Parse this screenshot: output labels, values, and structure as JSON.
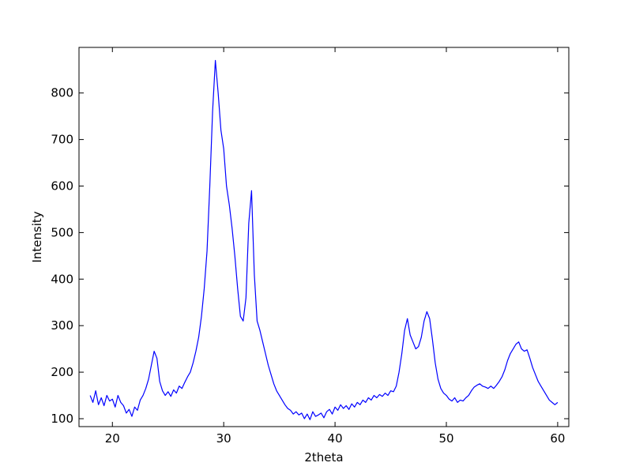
{
  "chart_data": {
    "type": "line",
    "x_label": "2theta",
    "y_label": "Intensity",
    "x": [
      18,
      18.25,
      18.5,
      18.75,
      19,
      19.25,
      19.5,
      19.75,
      20,
      20.25,
      20.5,
      20.75,
      21,
      21.25,
      21.5,
      21.75,
      22,
      22.25,
      22.5,
      22.75,
      23,
      23.25,
      23.5,
      23.75,
      24,
      24.25,
      24.5,
      24.75,
      25,
      25.25,
      25.5,
      25.75,
      26,
      26.25,
      26.5,
      26.75,
      27,
      27.25,
      27.5,
      27.75,
      28,
      28.25,
      28.5,
      28.75,
      29,
      29.25,
      29.5,
      29.75,
      30,
      30.25,
      30.5,
      30.75,
      31,
      31.25,
      31.5,
      31.75,
      32,
      32.25,
      32.5,
      32.75,
      33,
      33.25,
      33.5,
      33.75,
      34,
      34.25,
      34.5,
      34.75,
      35,
      35.25,
      35.5,
      35.75,
      36,
      36.25,
      36.5,
      36.75,
      37,
      37.25,
      37.5,
      37.75,
      38,
      38.25,
      38.5,
      38.75,
      39,
      39.25,
      39.5,
      39.75,
      40,
      40.25,
      40.5,
      40.75,
      41,
      41.25,
      41.5,
      41.75,
      42,
      42.25,
      42.5,
      42.75,
      43,
      43.25,
      43.5,
      43.75,
      44,
      44.25,
      44.5,
      44.75,
      45,
      45.25,
      45.5,
      45.75,
      46,
      46.25,
      46.5,
      46.75,
      47,
      47.25,
      47.5,
      47.75,
      48,
      48.25,
      48.5,
      48.75,
      49,
      49.25,
      49.5,
      49.75,
      50,
      50.25,
      50.5,
      50.75,
      51,
      51.25,
      51.5,
      51.75,
      52,
      52.25,
      52.5,
      52.75,
      53,
      53.25,
      53.5,
      53.75,
      54,
      54.25,
      54.5,
      54.75,
      55,
      55.25,
      55.5,
      55.75,
      56,
      56.25,
      56.5,
      56.75,
      57,
      57.25,
      57.5,
      57.75,
      58,
      58.25,
      58.5,
      58.75,
      59,
      59.25,
      59.5,
      59.75,
      60
    ],
    "series": [
      {
        "color": "#0000ff",
        "values": [
          150,
          135,
          160,
          130,
          145,
          128,
          150,
          138,
          142,
          125,
          150,
          135,
          128,
          112,
          120,
          105,
          125,
          118,
          140,
          150,
          165,
          185,
          215,
          245,
          230,
          180,
          160,
          150,
          158,
          148,
          162,
          155,
          170,
          165,
          178,
          190,
          200,
          220,
          245,
          275,
          320,
          380,
          460,
          600,
          760,
          870,
          800,
          720,
          680,
          600,
          560,
          510,
          450,
          380,
          320,
          310,
          360,
          520,
          590,
          410,
          310,
          290,
          265,
          240,
          215,
          195,
          175,
          160,
          150,
          140,
          130,
          122,
          118,
          110,
          115,
          108,
          112,
          100,
          110,
          98,
          115,
          105,
          108,
          112,
          102,
          115,
          120,
          110,
          125,
          118,
          130,
          122,
          128,
          120,
          132,
          125,
          135,
          130,
          140,
          135,
          145,
          140,
          150,
          145,
          152,
          148,
          155,
          150,
          160,
          158,
          170,
          200,
          240,
          290,
          315,
          280,
          265,
          250,
          255,
          275,
          310,
          330,
          315,
          270,
          220,
          185,
          165,
          155,
          150,
          142,
          138,
          145,
          135,
          140,
          138,
          145,
          150,
          160,
          168,
          172,
          175,
          170,
          168,
          165,
          170,
          165,
          172,
          180,
          190,
          205,
          225,
          240,
          250,
          260,
          265,
          250,
          245,
          248,
          230,
          210,
          195,
          180,
          170,
          160,
          150,
          140,
          135,
          130,
          135
        ]
      }
    ],
    "xlim": [
      17,
      61
    ],
    "ylim": [
      83,
      898
    ],
    "xticks": [
      20,
      30,
      40,
      50,
      60
    ],
    "yticks": [
      100,
      200,
      300,
      400,
      500,
      600,
      700,
      800
    ]
  }
}
